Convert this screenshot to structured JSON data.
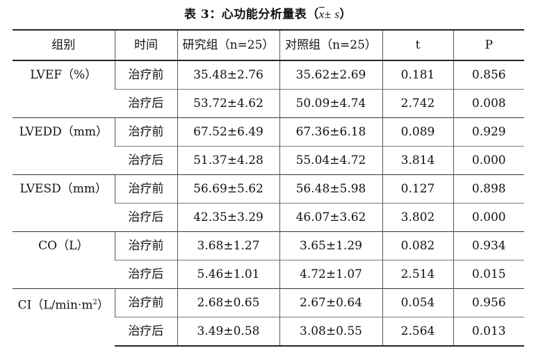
{
  "caption": {
    "label": "表 3：心功能分析量表",
    "formula_x": "x",
    "formula_rest": "± s",
    "open": "（",
    "close": "）"
  },
  "headers": [
    "组别",
    "时间",
    "研究组（n=25）",
    "对照组（n=25）",
    "t",
    "P"
  ],
  "groups": [
    {
      "name": "LVEF（%）",
      "rows": [
        {
          "time": "治疗前",
          "study": "35.48±2.76",
          "control": "35.62±2.69",
          "t": "0.181",
          "p": "0.856"
        },
        {
          "time": "治疗后",
          "study": "53.72±4.62",
          "control": "50.09±4.74",
          "t": "2.742",
          "p": "0.008"
        }
      ]
    },
    {
      "name": "LVEDD（mm）",
      "rows": [
        {
          "time": "治疗前",
          "study": "67.52±6.49",
          "control": "67.36±6.18",
          "t": "0.089",
          "p": "0.929"
        },
        {
          "time": "治疗后",
          "study": "51.37±4.28",
          "control": "55.04±4.72",
          "t": "3.814",
          "p": "0.000"
        }
      ]
    },
    {
      "name": "LVESD（mm）",
      "rows": [
        {
          "time": "治疗前",
          "study": "56.69±5.62",
          "control": "56.48±5.98",
          "t": "0.127",
          "p": "0.898"
        },
        {
          "time": "治疗后",
          "study": "42.35±3.29",
          "control": "46.07±3.62",
          "t": "3.802",
          "p": "0.000"
        }
      ]
    },
    {
      "name": "CO（L）",
      "rows": [
        {
          "time": "治疗前",
          "study": "3.68±1.27",
          "control": "3.65±1.29",
          "t": "0.082",
          "p": "0.934"
        },
        {
          "time": "治疗后",
          "study": "5.46±1.01",
          "control": "4.72±1.07",
          "t": "2.514",
          "p": "0.015"
        }
      ]
    },
    {
      "name": "CI（L/min·m",
      "name_sup": "2",
      "name_tail": "）",
      "rows": [
        {
          "time": "治疗前",
          "study": "2.68±0.65",
          "control": "2.67±0.64",
          "t": "0.054",
          "p": "0.956"
        },
        {
          "time": "治疗后",
          "study": "3.49±0.58",
          "control": "3.08±0.55",
          "t": "2.564",
          "p": "0.013"
        }
      ]
    }
  ]
}
